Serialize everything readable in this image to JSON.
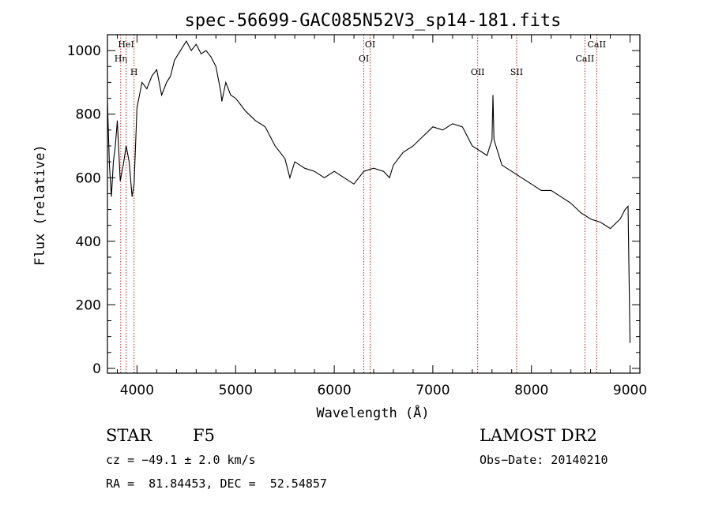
{
  "chart_data": {
    "type": "line",
    "title": "spec-56699-GAC085N52V3_sp14-181.fits",
    "xlabel": "Wavelength (Å)",
    "ylabel": "Flux (relative)",
    "xlim": [
      3700,
      9100
    ],
    "ylim": [
      -15,
      1050
    ],
    "xticks": [
      4000,
      5000,
      6000,
      7000,
      8000,
      9000
    ],
    "yticks": [
      0,
      200,
      400,
      600,
      800,
      1000
    ],
    "grid": false,
    "series": [
      {
        "name": "flux",
        "x": [
          3700,
          3720,
          3740,
          3760,
          3780,
          3800,
          3830,
          3860,
          3890,
          3920,
          3950,
          3970,
          4000,
          4050,
          4100,
          4150,
          4200,
          4250,
          4300,
          4340,
          4380,
          4420,
          4460,
          4500,
          4550,
          4600,
          4650,
          4700,
          4750,
          4800,
          4850,
          4860,
          4900,
          4950,
          5000,
          5100,
          5200,
          5300,
          5400,
          5500,
          5550,
          5600,
          5700,
          5800,
          5900,
          6000,
          6100,
          6200,
          6300,
          6400,
          6500,
          6560,
          6600,
          6700,
          6800,
          6900,
          7000,
          7100,
          7200,
          7300,
          7400,
          7500,
          7550,
          7600,
          7610,
          7620,
          7650,
          7700,
          7800,
          7900,
          8000,
          8100,
          8200,
          8300,
          8400,
          8500,
          8600,
          8700,
          8800,
          8900,
          8950,
          8980,
          9000
        ],
        "y": [
          840,
          640,
          540,
          650,
          700,
          780,
          590,
          640,
          700,
          650,
          540,
          580,
          820,
          900,
          880,
          920,
          940,
          860,
          900,
          920,
          970,
          990,
          1010,
          1030,
          1000,
          1020,
          990,
          1000,
          980,
          950,
          870,
          840,
          900,
          860,
          850,
          810,
          780,
          760,
          700,
          660,
          600,
          650,
          630,
          620,
          600,
          620,
          600,
          580,
          620,
          630,
          620,
          600,
          640,
          680,
          700,
          730,
          760,
          750,
          770,
          760,
          700,
          680,
          670,
          720,
          860,
          720,
          690,
          640,
          620,
          600,
          580,
          560,
          560,
          540,
          520,
          490,
          470,
          460,
          440,
          470,
          500,
          510,
          80
        ]
      }
    ],
    "lines": [
      {
        "label": "Hη",
        "x": 3835,
        "row": 2
      },
      {
        "label": "HeI",
        "x": 3889,
        "row": 1
      },
      {
        "label": "H",
        "x": 3970,
        "row": 3
      },
      {
        "label": "OI",
        "x": 6300,
        "row": 2
      },
      {
        "label": "OI",
        "x": 6364,
        "row": 1
      },
      {
        "label": "OII",
        "x": 7455,
        "row": 3
      },
      {
        "label": "SII",
        "x": 7850,
        "row": 3
      },
      {
        "label": "CaII",
        "x": 8542,
        "row": 2
      },
      {
        "label": "CaII",
        "x": 8662,
        "row": 1
      }
    ]
  },
  "info": {
    "object_class": "STAR",
    "subclass": "F5",
    "velocity": "cz = −49.1 ± 2.0 km/s",
    "coords": "RA =  81.84453, DEC =  52.54857",
    "survey": "LAMOST DR2",
    "obs_date": "Obs−Date: 20140210"
  },
  "colors": {
    "axis": "#000000",
    "spectrum": "#000000",
    "line_markers": "#b22222"
  }
}
